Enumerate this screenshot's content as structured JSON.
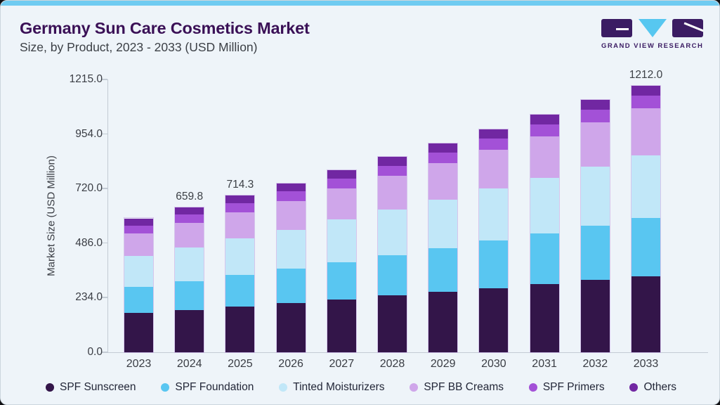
{
  "page": {
    "title": "Germany Sun Care Cosmetics Market",
    "subtitle": "Size, by Product, 2023 - 2033 (USD Million)",
    "brand": {
      "name": "GRAND VIEW RESEARCH"
    }
  },
  "colors": {
    "top_strip": "#6fcbf1",
    "card_bg": "#eef4f9",
    "title": "#3a1056",
    "subtitle": "#3c4046",
    "axis": "#c3cbd4",
    "tick_text": "#3a3d44",
    "legend_text": "#232738",
    "brand_purple": "#3b1c63",
    "brand_blue": "#57c7f0"
  },
  "chart_data": {
    "type": "bar",
    "stacked": true,
    "title": "Germany Sun Care Cosmetics Market Size, by Product, 2023 - 2033 (USD Million)",
    "xlabel": "",
    "ylabel": "Market Size (USD Million)",
    "categories": [
      "2023",
      "2024",
      "2025",
      "2026",
      "2027",
      "2028",
      "2029",
      "2030",
      "2031",
      "2032",
      "2033"
    ],
    "series": [
      {
        "name": "SPF Sunscreen",
        "color": "#331549",
        "values": [
          178.9,
          193.2,
          208.6,
          223.9,
          240.7,
          257.5,
          274.7,
          292.3,
          310.3,
          328.4,
          346.0
        ]
      },
      {
        "name": "SPF Foundation",
        "color": "#59c6f1",
        "values": [
          119.2,
          130.6,
          143.1,
          155.8,
          169.9,
          184.3,
          199.4,
          215.2,
          231.7,
          248.5,
          265.4
        ]
      },
      {
        "name": "Tinted Moisturizers",
        "color": "#c1e7f8",
        "values": [
          140.6,
          152.5,
          165.4,
          178.3,
          192.4,
          206.8,
          221.5,
          236.8,
          252.5,
          268.3,
          283.9
        ]
      },
      {
        "name": "SPF BB Creams",
        "color": "#cfa6ea",
        "values": [
          102.2,
          111.2,
          120.9,
          130.8,
          141.6,
          152.7,
          164.1,
          175.9,
          188.2,
          200.6,
          213.0
        ]
      },
      {
        "name": "SPF Primers",
        "color": "#a351d7",
        "values": [
          36.4,
          38.6,
          40.9,
          43.1,
          45.5,
          47.7,
          49.9,
          52.1,
          54.2,
          56.1,
          57.9
        ]
      },
      {
        "name": "Others",
        "color": "#7127a2",
        "values": [
          32.0,
          33.7,
          35.4,
          37.0,
          38.6,
          40.1,
          41.5,
          42.8,
          43.9,
          44.9,
          45.8
        ]
      }
    ],
    "totals": [
      609.3,
      659.8,
      714.3,
      768.9,
      828.7,
      889.1,
      951.1,
      1015.1,
      1080.8,
      1146.8,
      1212.0
    ],
    "bar_value_labels": {
      "2024": "659.8",
      "2025": "714.3",
      "2033": "1212.0"
    },
    "y_ticks": [
      "0.0",
      "234.0",
      "486.0",
      "720.0",
      "954.0",
      "1215.0"
    ],
    "ylim": [
      0,
      1215
    ],
    "grid": false,
    "legend_position": "bottom"
  }
}
